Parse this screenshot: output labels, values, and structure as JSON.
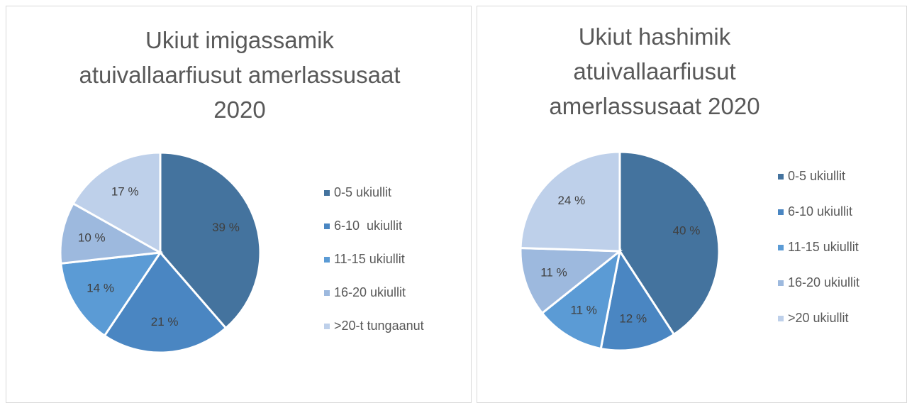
{
  "chart_data": [
    {
      "type": "pie",
      "title": "Ukiut imigassamik atuivallaarfiusut amerlassusaat 2020",
      "categories": [
        "0-5 ukiullit",
        "6-10  ukiullit",
        "11-15 ukiullit",
        "16-20 ukiullit",
        ">20-t tungaanut"
      ],
      "values": [
        39,
        21,
        14,
        10,
        17
      ],
      "value_labels": [
        "39 %",
        "21 %",
        "14 %",
        "10 %",
        "17 %"
      ],
      "colors": [
        "#44739e",
        "#4a86c2",
        "#5b9bd5",
        "#9db9de",
        "#bed0ea"
      ]
    },
    {
      "type": "pie",
      "title": "Ukiut hashimik atuivallaarfiusut amerlassusaat 2020",
      "categories": [
        "0-5 ukiullit",
        "6-10 ukiullit",
        "11-15 ukiullit",
        "16-20 ukiullit",
        ">20 ukiullit"
      ],
      "values": [
        40,
        12,
        11,
        11,
        24
      ],
      "value_labels": [
        "40 %",
        "12 %",
        "11 %",
        "11 %",
        "24 %"
      ],
      "colors": [
        "#44739e",
        "#4a86c2",
        "#5b9bd5",
        "#9db9de",
        "#bed0ea"
      ]
    }
  ]
}
